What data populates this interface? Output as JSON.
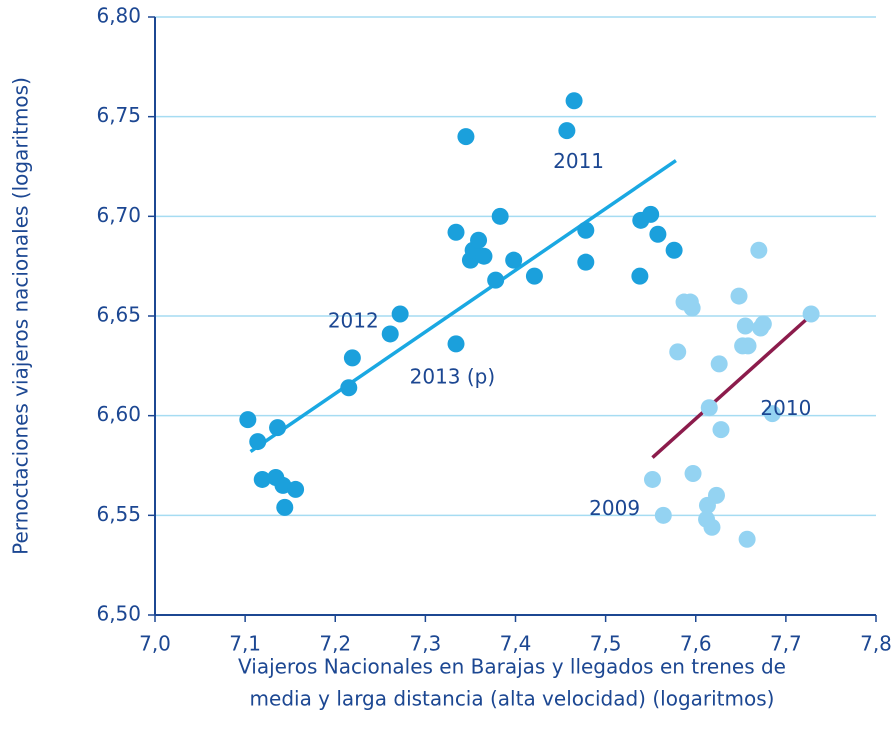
{
  "chart_data": {
    "type": "scatter",
    "xlabel": [
      "Viajeros Nacionales en Barajas y llegados en trenes de",
      "media y larga distancia (alta velocidad) (logaritmos)"
    ],
    "ylabel": "Pernoctaciones viajeros nacionales (logaritmos)",
    "xlim": [
      7.0,
      7.8
    ],
    "ylim": [
      6.5,
      6.8
    ],
    "xticks": [
      {
        "value": 7.0,
        "label": "7,0"
      },
      {
        "value": 7.1,
        "label": "7,1"
      },
      {
        "value": 7.2,
        "label": "7,2"
      },
      {
        "value": 7.3,
        "label": "7,3"
      },
      {
        "value": 7.4,
        "label": "7,4"
      },
      {
        "value": 7.5,
        "label": "7,5"
      },
      {
        "value": 7.6,
        "label": "7,6"
      },
      {
        "value": 7.7,
        "label": "7,7"
      },
      {
        "value": 7.8,
        "label": "7,8"
      }
    ],
    "yticks": [
      {
        "value": 6.5,
        "label": "6,50"
      },
      {
        "value": 6.55,
        "label": "6,55"
      },
      {
        "value": 6.6,
        "label": "6,60"
      },
      {
        "value": 6.65,
        "label": "6,65"
      },
      {
        "value": 6.7,
        "label": "6,70"
      },
      {
        "value": 6.75,
        "label": "6,75"
      },
      {
        "value": 6.8,
        "label": "6,80"
      }
    ],
    "grid": true,
    "series": [
      {
        "color": "#1ba0dc",
        "x": [
          7.103,
          7.114,
          7.136,
          7.119,
          7.134,
          7.142,
          7.156,
          7.144,
          7.215,
          7.219,
          7.261,
          7.272,
          7.334,
          7.334,
          7.345,
          7.35,
          7.353,
          7.359,
          7.365,
          7.378,
          7.383,
          7.398,
          7.421,
          7.457,
          7.465,
          7.478,
          7.478,
          7.538,
          7.539,
          7.55,
          7.558,
          7.576
        ],
        "values": [
          6.598,
          6.587,
          6.594,
          6.568,
          6.569,
          6.565,
          6.563,
          6.554,
          6.614,
          6.629,
          6.641,
          6.651,
          6.636,
          6.692,
          6.74,
          6.678,
          6.683,
          6.688,
          6.68,
          6.668,
          6.7,
          6.678,
          6.67,
          6.743,
          6.758,
          6.693,
          6.677,
          6.67,
          6.698,
          6.701,
          6.691,
          6.683
        ]
      },
      {
        "color": "#94d3f2",
        "x": [
          7.552,
          7.564,
          7.58,
          7.587,
          7.594,
          7.596,
          7.597,
          7.615,
          7.613,
          7.612,
          7.618,
          7.623,
          7.626,
          7.628,
          7.648,
          7.652,
          7.655,
          7.658,
          7.657,
          7.67,
          7.672,
          7.675,
          7.685,
          7.728
        ],
        "values": [
          6.568,
          6.55,
          6.632,
          6.657,
          6.657,
          6.654,
          6.571,
          6.604,
          6.555,
          6.548,
          6.544,
          6.56,
          6.626,
          6.593,
          6.66,
          6.635,
          6.645,
          6.635,
          6.538,
          6.683,
          6.644,
          6.646,
          6.601,
          6.651
        ]
      }
    ],
    "lines": [
      {
        "color": "#1aa8e2",
        "x": [
          7.106,
          7.578
        ],
        "values": [
          6.582,
          6.728
        ]
      },
      {
        "color": "#8c1c4c",
        "x": [
          7.552,
          7.727
        ],
        "values": [
          6.579,
          6.65
        ]
      }
    ],
    "annotations": [
      {
        "text": "2011",
        "x": 7.47,
        "y": 6.727
      },
      {
        "text": "2012",
        "x": 7.22,
        "y": 6.647
      },
      {
        "text": "2013 (p)",
        "x": 7.33,
        "y": 6.619
      },
      {
        "text": "2010",
        "x": 7.7,
        "y": 6.603
      },
      {
        "text": "2009",
        "x": 7.51,
        "y": 6.553
      }
    ]
  }
}
